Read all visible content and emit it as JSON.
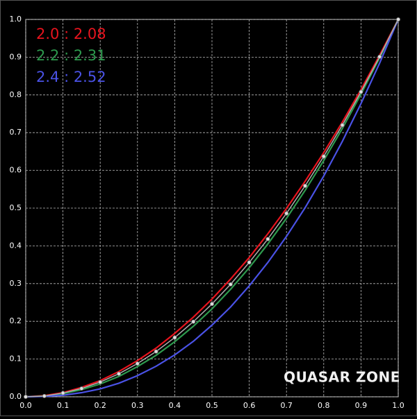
{
  "chart_data": {
    "type": "line",
    "x": [
      0,
      0.05,
      0.1,
      0.15,
      0.2,
      0.25,
      0.3,
      0.35,
      0.4,
      0.45,
      0.5,
      0.55,
      0.6,
      0.65,
      0.7,
      0.75,
      0.8,
      0.85,
      0.9,
      0.95,
      1
    ],
    "series": [
      {
        "name": "2.0 : 2.08",
        "color": "#e8141e",
        "values": [
          0,
          0.003,
          0.011,
          0.025,
          0.043,
          0.067,
          0.096,
          0.129,
          0.168,
          0.211,
          0.259,
          0.312,
          0.369,
          0.432,
          0.499,
          0.571,
          0.647,
          0.728,
          0.814,
          0.905,
          1
        ]
      },
      {
        "name": "2.2 : 2.31",
        "color": "#2e9a4e",
        "values": [
          0,
          0.002,
          0.008,
          0.019,
          0.034,
          0.054,
          0.08,
          0.11,
          0.146,
          0.187,
          0.233,
          0.285,
          0.342,
          0.405,
          0.473,
          0.547,
          0.626,
          0.711,
          0.802,
          0.898,
          1
        ]
      },
      {
        "name": "2.4 : 2.52",
        "color": "#4a52e6",
        "values": [
          0,
          0.001,
          0.004,
          0.011,
          0.021,
          0.036,
          0.056,
          0.081,
          0.111,
          0.147,
          0.19,
          0.238,
          0.294,
          0.356,
          0.425,
          0.501,
          0.585,
          0.677,
          0.777,
          0.884,
          1
        ]
      },
      {
        "color": "#b0b0b0",
        "markers": true,
        "values": [
          0,
          0.002,
          0.01,
          0.022,
          0.039,
          0.061,
          0.088,
          0.12,
          0.157,
          0.199,
          0.246,
          0.298,
          0.356,
          0.418,
          0.486,
          0.559,
          0.637,
          0.72,
          0.808,
          0.901,
          1
        ]
      }
    ],
    "xlim": [
      0,
      1
    ],
    "ylim": [
      0,
      1
    ],
    "xticks": [
      {
        "value": 0,
        "label": "0.0"
      },
      0.1,
      0.2,
      0.3,
      0.4,
      0.5,
      0.6,
      0.7,
      0.8,
      0.9,
      {
        "value": 1,
        "label": "1.0"
      }
    ],
    "yticks": [
      {
        "value": 0,
        "label": "0.0"
      },
      0.1,
      0.2,
      0.3,
      0.4,
      0.5,
      0.6,
      0.7,
      0.8,
      0.9,
      {
        "value": 1,
        "label": "1.0"
      }
    ],
    "grid": true,
    "legend": "upper left",
    "watermark": "QUASAR ZONE"
  }
}
